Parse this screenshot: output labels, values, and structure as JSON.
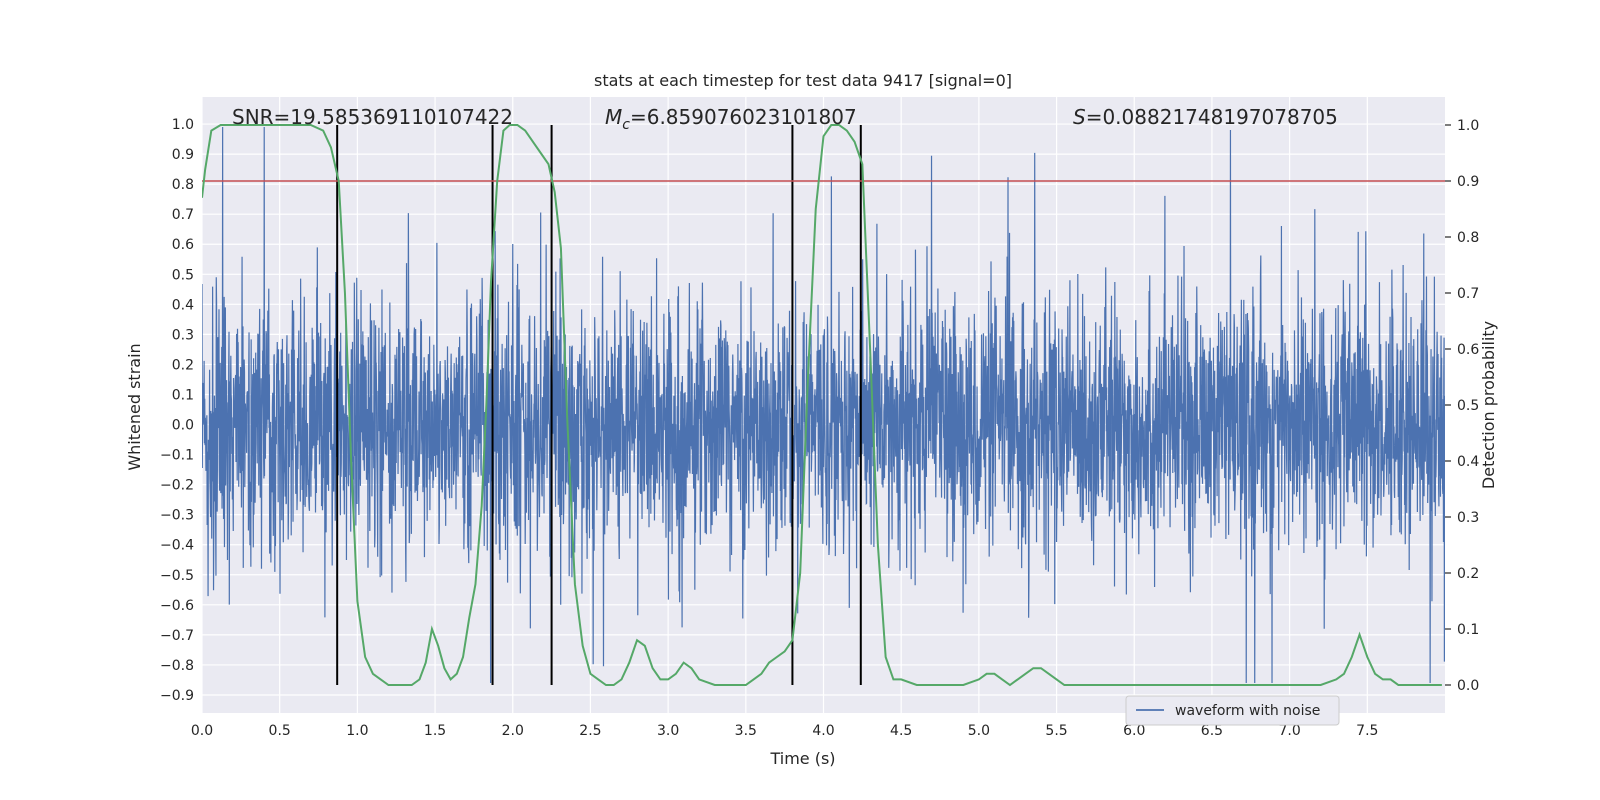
{
  "chart_data": {
    "type": "line",
    "title": "stats at each timestep for test data 9417 [signal=0]",
    "xlabel": "Time (s)",
    "ylabel_left": "Whitened strain",
    "ylabel_right": "Detection probability",
    "xlim": [
      0,
      8.0
    ],
    "ylim_left": [
      -0.96,
      1.09
    ],
    "ylim_right": [
      -0.05,
      1.05
    ],
    "x_ticks": [
      0.0,
      0.5,
      1.0,
      1.5,
      2.0,
      2.5,
      3.0,
      3.5,
      4.0,
      4.5,
      5.0,
      5.5,
      6.0,
      6.5,
      7.0,
      7.5
    ],
    "x_tick_labels": [
      "0.0",
      "0.5",
      "1.0",
      "1.5",
      "2.0",
      "2.5",
      "3.0",
      "3.5",
      "4.0",
      "4.5",
      "5.0",
      "5.5",
      "6.0",
      "6.5",
      "7.0",
      "7.5"
    ],
    "y_left_ticks": [
      1.0,
      0.9,
      0.8,
      0.7,
      0.6,
      0.5,
      0.4,
      0.3,
      0.2,
      0.1,
      0.0,
      -0.1,
      -0.2,
      -0.3,
      -0.4,
      -0.5,
      -0.6,
      -0.7,
      -0.8,
      -0.9
    ],
    "y_left_tick_labels": [
      "1.0",
      "0.9",
      "0.8",
      "0.7",
      "0.6",
      "0.5",
      "0.4",
      "0.3",
      "0.2",
      "0.1",
      "0.0",
      "−0.1",
      "−0.2",
      "−0.3",
      "−0.4",
      "−0.5",
      "−0.6",
      "−0.7",
      "−0.8",
      "−0.9"
    ],
    "y_right_ticks": [
      1.0,
      0.9,
      0.8,
      0.7,
      0.6,
      0.5,
      0.4,
      0.3,
      0.2,
      0.1,
      0.0
    ],
    "y_right_tick_labels": [
      "1.0",
      "0.9",
      "0.8",
      "0.7",
      "0.6",
      "0.5",
      "0.4",
      "0.3",
      "0.2",
      "0.1",
      "0.0"
    ],
    "annotations": {
      "snr": "SNR=19.585369110107422",
      "mc_symbol": "M",
      "mc_subscript": "c",
      "mc_value": "=6.859076023101807",
      "s_symbol": "S",
      "s_value": "=0.08821748197078705"
    },
    "threshold": {
      "value": 0.9,
      "axis": "right",
      "color": "#c44e52"
    },
    "vertical_lines": [
      0.87,
      1.87,
      2.25,
      3.8,
      4.24
    ],
    "legend": {
      "label": "waveform with noise",
      "position": "lower-center-right"
    },
    "series": [
      {
        "name": "waveform with noise",
        "axis": "left",
        "color": "#4c72b0",
        "sampling": "noise, ~4096 samples over 0–8 s, core amplitude ±0.3, peaks up to ±1.0"
      },
      {
        "name": "Detection probability",
        "axis": "right",
        "color": "#55a868",
        "x": [
          0.0,
          0.02,
          0.06,
          0.12,
          0.2,
          0.3,
          0.4,
          0.5,
          0.6,
          0.7,
          0.78,
          0.83,
          0.88,
          0.92,
          0.96,
          1.0,
          1.05,
          1.1,
          1.15,
          1.2,
          1.25,
          1.3,
          1.35,
          1.4,
          1.44,
          1.48,
          1.52,
          1.56,
          1.6,
          1.64,
          1.68,
          1.72,
          1.76,
          1.8,
          1.83,
          1.86,
          1.9,
          1.94,
          1.98,
          2.03,
          2.08,
          2.13,
          2.18,
          2.23,
          2.27,
          2.31,
          2.35,
          2.4,
          2.45,
          2.5,
          2.55,
          2.6,
          2.65,
          2.7,
          2.75,
          2.8,
          2.85,
          2.9,
          2.95,
          3.0,
          3.05,
          3.1,
          3.15,
          3.2,
          3.3,
          3.4,
          3.5,
          3.55,
          3.6,
          3.65,
          3.7,
          3.75,
          3.8,
          3.85,
          3.9,
          3.95,
          4.0,
          4.05,
          4.1,
          4.15,
          4.2,
          4.25,
          4.3,
          4.35,
          4.4,
          4.45,
          4.5,
          4.6,
          4.7,
          4.8,
          4.9,
          5.0,
          5.05,
          5.1,
          5.15,
          5.2,
          5.25,
          5.3,
          5.35,
          5.4,
          5.45,
          5.5,
          5.55,
          5.6,
          5.7,
          5.8,
          5.9,
          6.0,
          6.2,
          6.4,
          6.6,
          6.8,
          7.0,
          7.2,
          7.3,
          7.35,
          7.4,
          7.45,
          7.5,
          7.55,
          7.6,
          7.65,
          7.7,
          7.75,
          7.8,
          7.9,
          7.98
        ],
        "values": [
          0.87,
          0.92,
          0.99,
          1.0,
          1.0,
          1.0,
          1.0,
          1.0,
          1.0,
          1.0,
          0.99,
          0.96,
          0.9,
          0.7,
          0.4,
          0.15,
          0.05,
          0.02,
          0.01,
          0.0,
          0.0,
          0.0,
          0.0,
          0.01,
          0.04,
          0.1,
          0.07,
          0.03,
          0.01,
          0.02,
          0.05,
          0.12,
          0.18,
          0.32,
          0.5,
          0.72,
          0.9,
          0.99,
          1.0,
          1.0,
          0.99,
          0.97,
          0.95,
          0.93,
          0.88,
          0.78,
          0.48,
          0.18,
          0.07,
          0.02,
          0.01,
          0.0,
          0.0,
          0.01,
          0.04,
          0.08,
          0.07,
          0.03,
          0.01,
          0.01,
          0.02,
          0.04,
          0.03,
          0.01,
          0.0,
          0.0,
          0.0,
          0.01,
          0.02,
          0.04,
          0.05,
          0.06,
          0.08,
          0.2,
          0.55,
          0.85,
          0.98,
          1.0,
          1.0,
          0.99,
          0.97,
          0.93,
          0.6,
          0.25,
          0.05,
          0.01,
          0.01,
          0.0,
          0.0,
          0.0,
          0.0,
          0.01,
          0.02,
          0.02,
          0.01,
          0.0,
          0.01,
          0.02,
          0.03,
          0.03,
          0.02,
          0.01,
          0.0,
          0.0,
          0.0,
          0.0,
          0.0,
          0.0,
          0.0,
          0.0,
          0.0,
          0.0,
          0.0,
          0.0,
          0.01,
          0.02,
          0.05,
          0.09,
          0.05,
          0.02,
          0.01,
          0.01,
          0.0,
          0.0,
          0.0,
          0.0,
          0.0
        ]
      }
    ]
  }
}
